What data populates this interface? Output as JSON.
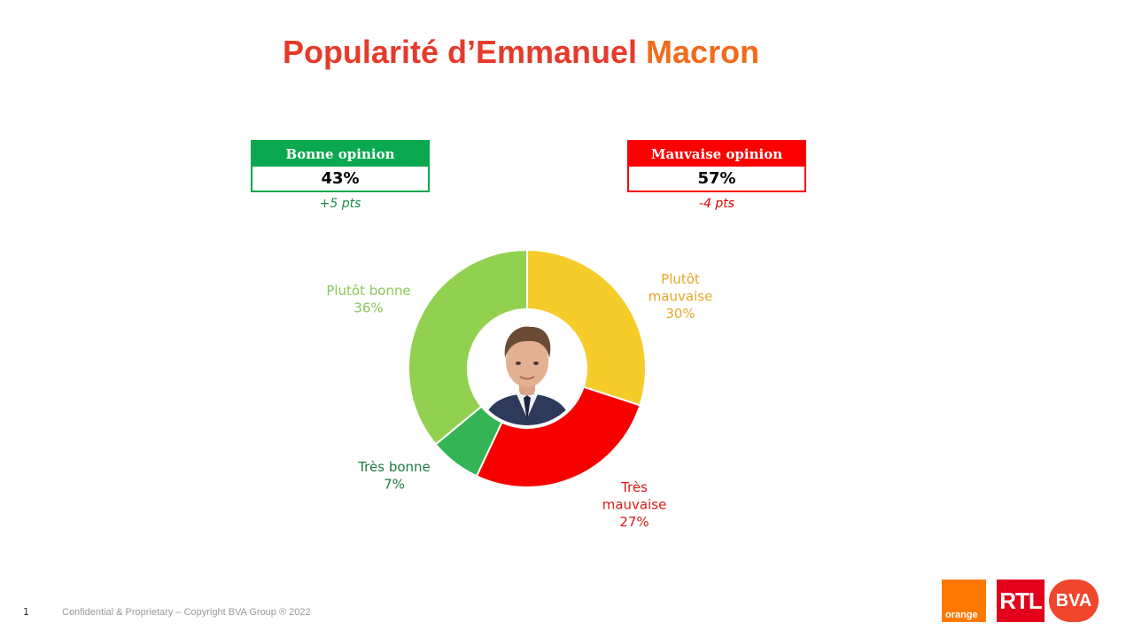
{
  "page": {
    "title_part1": "Popularité d’Emmanuel ",
    "title_part2": "Macron",
    "footer_number": "1",
    "footer_text": "Confidential & Proprietary – Copyright BVA Group ® 2022"
  },
  "summary": {
    "good": {
      "label": "Bonne opinion",
      "value": "43%",
      "delta": "+5 pts",
      "color": "#0aa84f"
    },
    "bad": {
      "label": "Mauvaise opinion",
      "value": "57%",
      "delta": "-4 pts",
      "color": "#fa0000"
    }
  },
  "logos": {
    "orange": "orange",
    "rtl": "RTL",
    "bva": "BVA"
  },
  "chart_data": {
    "type": "pie",
    "style": "donut",
    "slices": [
      {
        "label_lines": [
          "Plutôt",
          "mauvaise",
          "30%"
        ],
        "name": "Plutôt mauvaise",
        "value": 30,
        "color": "#f6cc2a",
        "label_color": "#e4a72a"
      },
      {
        "label_lines": [
          "Très",
          "mauvaise",
          "27%"
        ],
        "name": "Très mauvaise",
        "value": 27,
        "color": "#f90000",
        "label_color": "#d91a1a"
      },
      {
        "label_lines": [
          "Très bonne",
          "7%"
        ],
        "name": "Très bonne",
        "value": 7,
        "color": "#35b456",
        "label_color": "#1e7a40"
      },
      {
        "label_lines": [
          "Plutôt bonne",
          "36%"
        ],
        "name": "Plutôt bonne",
        "value": 36,
        "color": "#92d050",
        "label_color": "#8cc75a"
      }
    ],
    "center_image": "portrait"
  }
}
